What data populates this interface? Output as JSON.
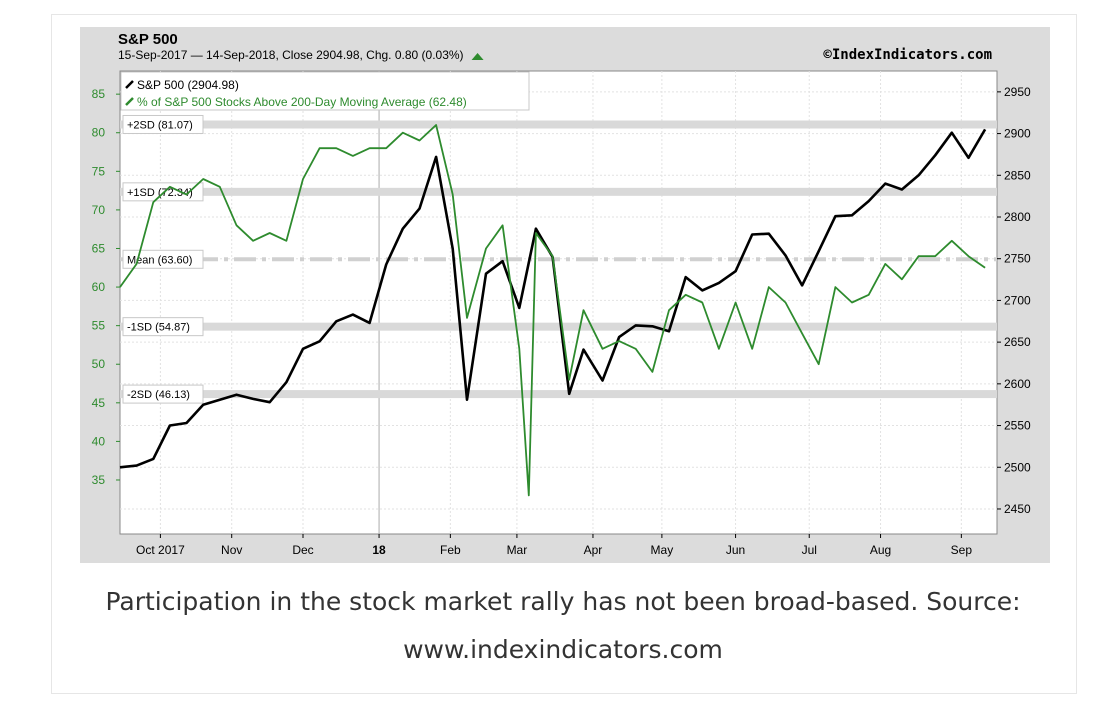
{
  "caption": {
    "line1": "Participation in the stock market rally has not been broad-based. Source:",
    "line2": "www.indexindicators.com"
  },
  "chart_data": {
    "type": "line",
    "title": "S&P 500",
    "subtitle": "15-Sep-2017 — 14-Sep-2018, Close 2904.98, Chg. 0.80 (0.03%)",
    "watermark": "©IndexIndicators.com",
    "x_tick_labels": [
      "Oct 2017",
      "Nov",
      "Dec",
      "18",
      "Feb",
      "Mar",
      "Apr",
      "May",
      "Jun",
      "Jul",
      "Aug",
      "Sep"
    ],
    "x_ticks_bold": [
      "18"
    ],
    "left_axis": {
      "ylim": [
        28,
        88
      ],
      "ticks": [
        35,
        40,
        45,
        50,
        55,
        60,
        65,
        70,
        75,
        80,
        85
      ],
      "color": "#2e8b2e"
    },
    "right_axis": {
      "ylim": [
        2420,
        2975
      ],
      "ticks": [
        2450,
        2500,
        2550,
        2600,
        2650,
        2700,
        2750,
        2800,
        2850,
        2900,
        2950
      ],
      "color": "#000000"
    },
    "grid": true,
    "legend_position": "top-left",
    "series": [
      {
        "name": "S&P 500 (2904.98)",
        "axis": "right",
        "color": "#000000",
        "x": [
          "2017-09-15",
          "2017-09-22",
          "2017-09-29",
          "2017-10-06",
          "2017-10-13",
          "2017-10-20",
          "2017-10-27",
          "2017-11-03",
          "2017-11-10",
          "2017-11-17",
          "2017-11-24",
          "2017-12-01",
          "2017-12-08",
          "2017-12-15",
          "2017-12-22",
          "2017-12-29",
          "2018-01-05",
          "2018-01-12",
          "2018-01-19",
          "2018-01-26",
          "2018-02-02",
          "2018-02-08",
          "2018-02-16",
          "2018-02-23",
          "2018-03-02",
          "2018-03-09",
          "2018-03-16",
          "2018-03-23",
          "2018-03-29",
          "2018-04-06",
          "2018-04-13",
          "2018-04-20",
          "2018-04-27",
          "2018-05-04",
          "2018-05-11",
          "2018-05-18",
          "2018-05-25",
          "2018-06-01",
          "2018-06-08",
          "2018-06-15",
          "2018-06-22",
          "2018-06-29",
          "2018-07-06",
          "2018-07-13",
          "2018-07-20",
          "2018-07-27",
          "2018-08-03",
          "2018-08-10",
          "2018-08-17",
          "2018-08-24",
          "2018-08-31",
          "2018-09-07",
          "2018-09-14"
        ],
        "values": [
          2500,
          2502,
          2510,
          2550,
          2553,
          2575,
          2581,
          2587,
          2582,
          2578,
          2602,
          2642,
          2651,
          2675,
          2683,
          2673,
          2743,
          2786,
          2810,
          2872,
          2762,
          2581,
          2732,
          2747,
          2691,
          2786,
          2752,
          2588,
          2641,
          2604,
          2656,
          2670,
          2669,
          2663,
          2728,
          2712,
          2721,
          2735,
          2779,
          2780,
          2754,
          2718,
          2759,
          2801,
          2802,
          2819,
          2840,
          2833,
          2850,
          2874,
          2901,
          2871,
          2905
        ]
      },
      {
        "name": "% of S&P 500 Stocks Above 200-Day Moving Average (62.48)",
        "axis": "left",
        "color": "#2e8b2e",
        "x": [
          "2017-09-15",
          "2017-09-22",
          "2017-09-29",
          "2017-10-06",
          "2017-10-13",
          "2017-10-20",
          "2017-10-27",
          "2017-11-03",
          "2017-11-10",
          "2017-11-17",
          "2017-11-24",
          "2017-12-01",
          "2017-12-08",
          "2017-12-15",
          "2017-12-22",
          "2017-12-29",
          "2018-01-05",
          "2018-01-12",
          "2018-01-19",
          "2018-01-26",
          "2018-02-02",
          "2018-02-08",
          "2018-02-16",
          "2018-02-23",
          "2018-03-02",
          "2018-03-06",
          "2018-03-09",
          "2018-03-16",
          "2018-03-23",
          "2018-03-29",
          "2018-04-06",
          "2018-04-13",
          "2018-04-20",
          "2018-04-27",
          "2018-05-04",
          "2018-05-11",
          "2018-05-18",
          "2018-05-25",
          "2018-06-01",
          "2018-06-08",
          "2018-06-15",
          "2018-06-22",
          "2018-06-29",
          "2018-07-06",
          "2018-07-13",
          "2018-07-20",
          "2018-07-27",
          "2018-08-03",
          "2018-08-10",
          "2018-08-17",
          "2018-08-24",
          "2018-08-31",
          "2018-09-07",
          "2018-09-14"
        ],
        "values": [
          60,
          63,
          71,
          73,
          72,
          74,
          73,
          68,
          66,
          67,
          66,
          74,
          78,
          78,
          77,
          78,
          78,
          80,
          79,
          81,
          72,
          56,
          65,
          68,
          52,
          33,
          67,
          64,
          48,
          57,
          52,
          53,
          52,
          49,
          57,
          59,
          58,
          52,
          58,
          52,
          60,
          58,
          54,
          50,
          60,
          58,
          59,
          63,
          61,
          64,
          64,
          66,
          64,
          62.5
        ]
      }
    ],
    "reference_lines": [
      {
        "label": "+2SD (81.07)",
        "value": 81.07,
        "style": "band"
      },
      {
        "label": "+1SD (72.34)",
        "value": 72.34,
        "style": "band"
      },
      {
        "label": "Mean (63.60)",
        "value": 63.6,
        "style": "dash-dot"
      },
      {
        "label": "-1SD (54.87)",
        "value": 54.87,
        "style": "band"
      },
      {
        "label": "-2SD (46.13)",
        "value": 46.13,
        "style": "band"
      }
    ],
    "colors": {
      "background": "#dcdcdc",
      "plot": "#ffffff",
      "band": "#d9d9d9",
      "green": "#2e8b2e",
      "black": "#000000",
      "up_marker": "#2e8b2e"
    }
  }
}
